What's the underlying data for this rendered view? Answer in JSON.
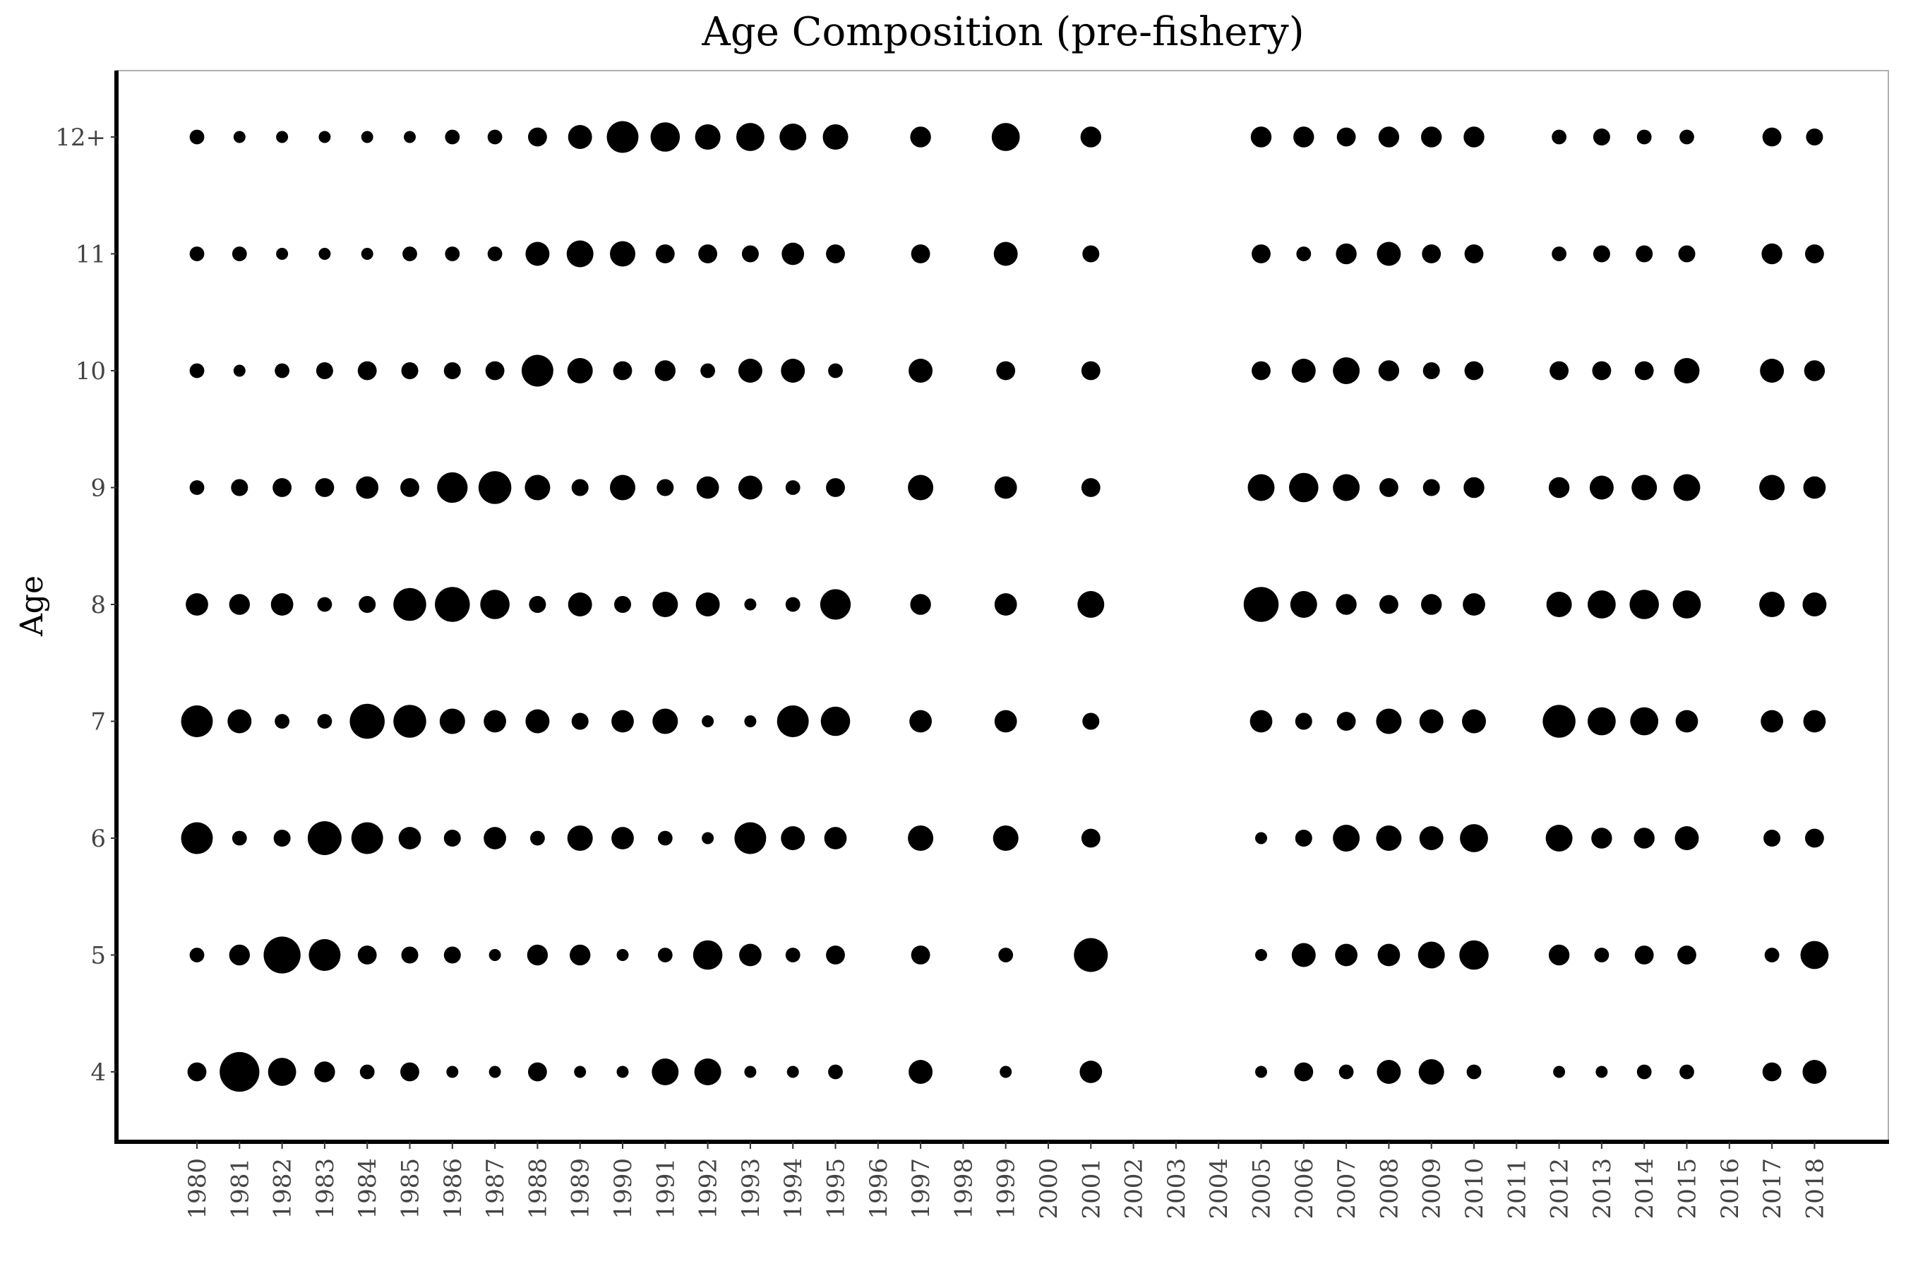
{
  "chart_data": {
    "type": "scatter",
    "title": "Age Composition (pre-fishery)",
    "xlabel": "",
    "ylabel": "Age",
    "x_ticks": [
      "1980",
      "1981",
      "1982",
      "1983",
      "1984",
      "1985",
      "1986",
      "1987",
      "1988",
      "1989",
      "1990",
      "1991",
      "1992",
      "1993",
      "1994",
      "1995",
      "1996",
      "1997",
      "1998",
      "1999",
      "2000",
      "2001",
      "2002",
      "2003",
      "2004",
      "2005",
      "2006",
      "2007",
      "2008",
      "2009",
      "2010",
      "2011",
      "2012",
      "2013",
      "2014",
      "2015",
      "2016",
      "2017",
      "2018"
    ],
    "y_categories": [
      "4",
      "5",
      "6",
      "7",
      "8",
      "9",
      "10",
      "11",
      "12+"
    ],
    "grid": false,
    "legend": "none",
    "marker_color": "#000000",
    "note_values": "bubble size proportional to relative proportion at age",
    "series": [
      {
        "year": "1980",
        "values": [
          5,
          3,
          14,
          14,
          7,
          3,
          3,
          3,
          3
        ]
      },
      {
        "year": "1981",
        "values": [
          22,
          6,
          3,
          8,
          6,
          4,
          2,
          3,
          2
        ]
      },
      {
        "year": "1982",
        "values": [
          11,
          19,
          4,
          3,
          7,
          5,
          3,
          2,
          2
        ]
      },
      {
        "year": "1983",
        "values": [
          6,
          14,
          16,
          3,
          3,
          5,
          4,
          2,
          2
        ]
      },
      {
        "year": "1984",
        "values": [
          3,
          5,
          14,
          17,
          4,
          7,
          5,
          2,
          2
        ]
      },
      {
        "year": "1985",
        "values": [
          5,
          4,
          7,
          15,
          15,
          5,
          4,
          3,
          2
        ]
      },
      {
        "year": "1986",
        "values": [
          2,
          4,
          4,
          9,
          17,
          13,
          4,
          3,
          3
        ]
      },
      {
        "year": "1987",
        "values": [
          2,
          2,
          7,
          7,
          12,
          15,
          5,
          3,
          3
        ]
      },
      {
        "year": "1988",
        "values": [
          5,
          6,
          3,
          8,
          4,
          9,
          14,
          8,
          5
        ]
      },
      {
        "year": "1989",
        "values": [
          2,
          6,
          9,
          4,
          8,
          4,
          9,
          10,
          8
        ]
      },
      {
        "year": "1990",
        "values": [
          2,
          2,
          7,
          7,
          4,
          9,
          5,
          9,
          14
        ]
      },
      {
        "year": "1991",
        "values": [
          10,
          3,
          3,
          9,
          9,
          4,
          6,
          5,
          12
        ]
      },
      {
        "year": "1992",
        "values": [
          10,
          12,
          2,
          2,
          8,
          7,
          3,
          5,
          9
        ]
      },
      {
        "year": "1993",
        "values": [
          2,
          7,
          14,
          2,
          2,
          8,
          8,
          4,
          11
        ]
      },
      {
        "year": "1994",
        "values": [
          2,
          3,
          8,
          14,
          3,
          3,
          8,
          7,
          10
        ]
      },
      {
        "year": "1995",
        "values": [
          3,
          5,
          7,
          12,
          13,
          5,
          3,
          5,
          9
        ]
      },
      {
        "year": "1997",
        "values": [
          8,
          5,
          9,
          7,
          6,
          9,
          8,
          5,
          6
        ]
      },
      {
        "year": "1999",
        "values": [
          2,
          3,
          9,
          7,
          7,
          7,
          5,
          8,
          11
        ]
      },
      {
        "year": "2001",
        "values": [
          7,
          16,
          5,
          4,
          10,
          5,
          5,
          4,
          6
        ]
      },
      {
        "year": "2005",
        "values": [
          2,
          2,
          2,
          7,
          17,
          10,
          5,
          5,
          6
        ]
      },
      {
        "year": "2006",
        "values": [
          5,
          8,
          4,
          4,
          10,
          12,
          8,
          3,
          6
        ]
      },
      {
        "year": "2007",
        "values": [
          3,
          7,
          10,
          5,
          6,
          10,
          10,
          6,
          5
        ]
      },
      {
        "year": "2008",
        "values": [
          8,
          7,
          9,
          9,
          5,
          5,
          6,
          8,
          6
        ]
      },
      {
        "year": "2009",
        "values": [
          9,
          10,
          8,
          8,
          6,
          4,
          4,
          5,
          6
        ]
      },
      {
        "year": "2010",
        "values": [
          3,
          12,
          11,
          8,
          7,
          6,
          5,
          5,
          6
        ]
      },
      {
        "year": "2012",
        "values": [
          2,
          6,
          10,
          15,
          9,
          6,
          5,
          3,
          3
        ]
      },
      {
        "year": "2013",
        "values": [
          2,
          3,
          6,
          11,
          11,
          8,
          5,
          4,
          4
        ]
      },
      {
        "year": "2014",
        "values": [
          3,
          5,
          6,
          11,
          12,
          9,
          5,
          4,
          3
        ]
      },
      {
        "year": "2015",
        "values": [
          3,
          5,
          8,
          7,
          11,
          10,
          9,
          4,
          3
        ]
      },
      {
        "year": "2017",
        "values": [
          5,
          3,
          4,
          7,
          9,
          9,
          8,
          6,
          5
        ]
      },
      {
        "year": "2018",
        "values": [
          8,
          11,
          5,
          7,
          8,
          7,
          6,
          5,
          4
        ]
      }
    ]
  }
}
